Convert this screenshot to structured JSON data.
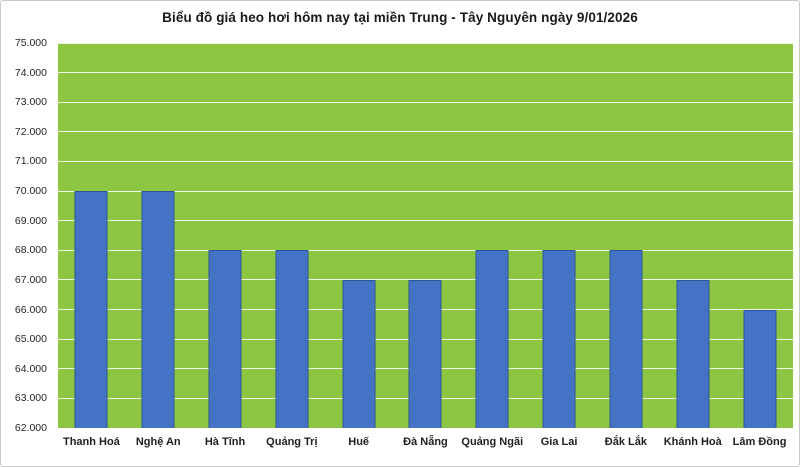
{
  "chart": {
    "title": "Biểu đồ giá heo hơi hôm nay tại miền Trung - Tây Nguyên ngày 9/01/2026"
  },
  "chart_data": {
    "type": "bar",
    "title": "Biểu đồ giá heo hơi hôm nay tại miền Trung - Tây Nguyên ngày 9/01/2026",
    "categories": [
      "Thanh Hoá",
      "Nghệ An",
      "Hà Tĩnh",
      "Quảng Trị",
      "Huế",
      "Đà Nẵng",
      "Quảng Ngãi",
      "Gia Lai",
      "Đắk Lắk",
      "Khánh Hoà",
      "Lâm Đồng"
    ],
    "values": [
      70000,
      70000,
      68000,
      68000,
      67000,
      67000,
      68000,
      68000,
      68000,
      67000,
      66000
    ],
    "xlabel": "",
    "ylabel": "",
    "ylim": [
      62000,
      75000
    ],
    "ytick_step": 1000,
    "ytick_labels_top_to_bottom": [
      "75.000",
      "74.000",
      "73.000",
      "72.000",
      "71.000",
      "70.000",
      "69.000",
      "68.000",
      "67.000",
      "66.000",
      "65.000",
      "64.000",
      "63.000",
      "62.000"
    ],
    "grid": true,
    "legend": "none",
    "colors": {
      "plot_background": "#8CC642",
      "bar_fill": "#4472C4",
      "bar_border": "#2E5597",
      "gridline": "#FFFFFF",
      "title_text": "#1A1A1A",
      "axis_text": "#262626",
      "category_text": "#1F1F1F"
    }
  }
}
